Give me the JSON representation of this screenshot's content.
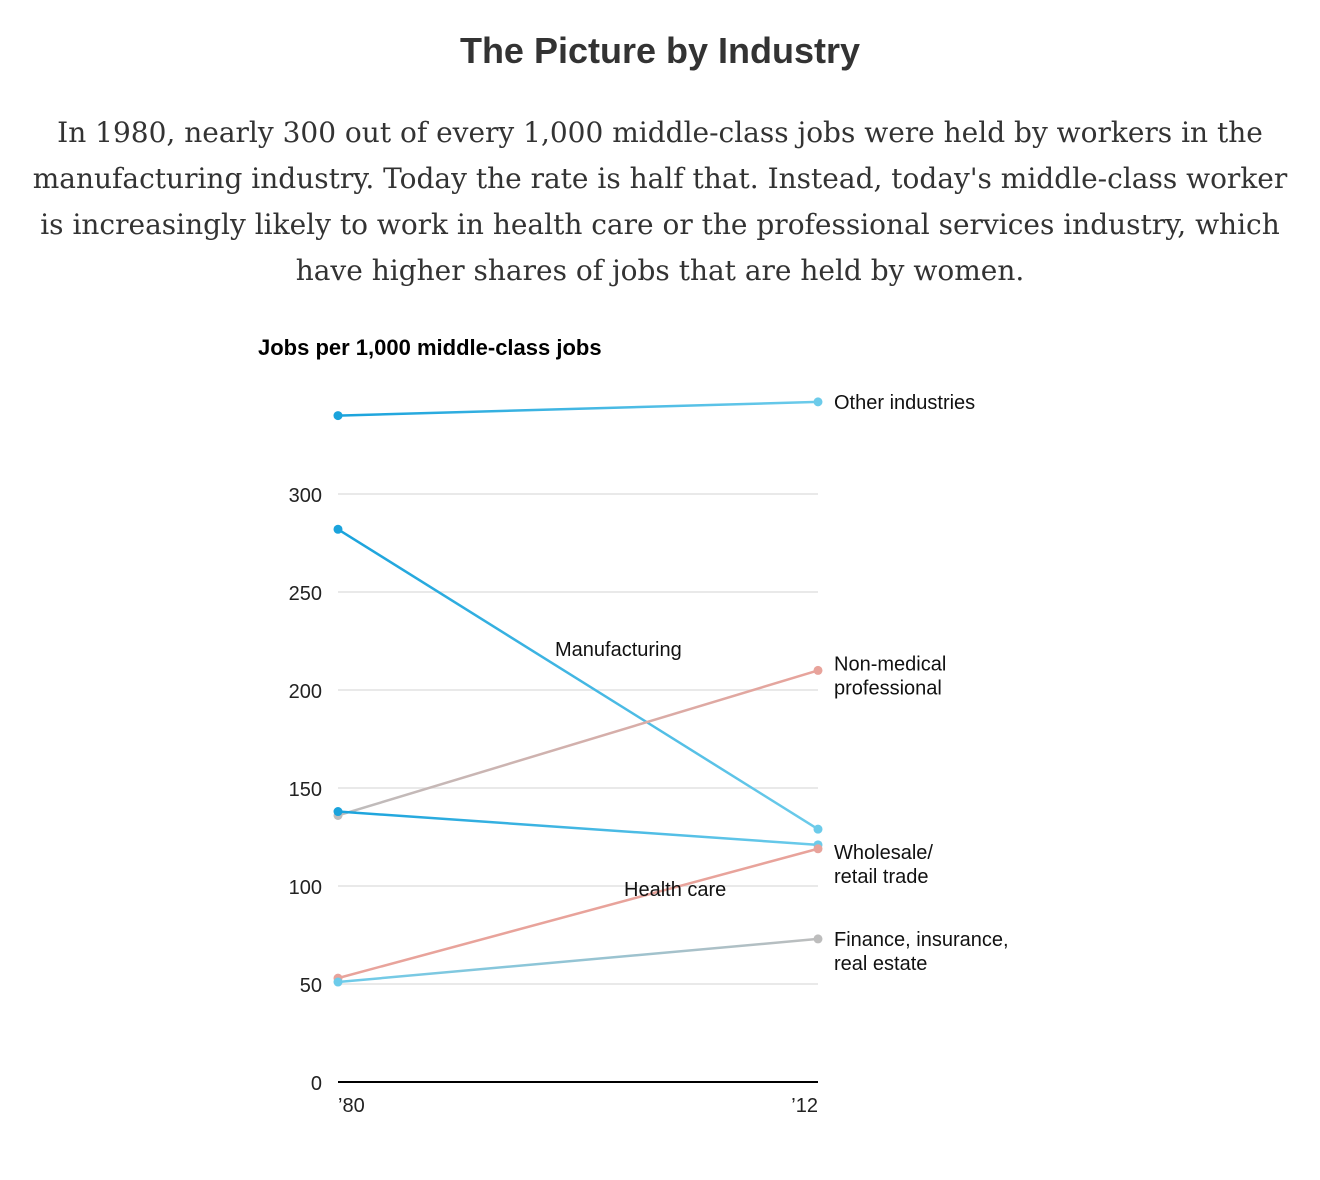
{
  "header": {
    "title": "The Picture by Industry",
    "intro": "In 1980, nearly 300 out of every 1,000 middle-class jobs were held by workers in the manufacturing industry. Today the rate is half that. Instead, today's middle-class worker is increasingly likely to work in health care or the professional services industry, which have higher shares of jobs that are held by women."
  },
  "chart_data": {
    "type": "line",
    "title": "",
    "ylabel": "Jobs per 1,000 middle-class jobs",
    "xlabel": "",
    "categories": [
      "’80",
      "’12"
    ],
    "ylim": [
      0,
      350
    ],
    "yticks": [
      0,
      50,
      100,
      150,
      200,
      250,
      300
    ],
    "grid": true,
    "series": [
      {
        "name": "Other industries",
        "label_lines": [
          "Other industries"
        ],
        "label_position": "end",
        "values": [
          340,
          347
        ],
        "color_start": "#1aa3dc",
        "color_end": "#6ccbea"
      },
      {
        "name": "Manufacturing",
        "label_lines": [
          "Manufacturing"
        ],
        "label_position": "middle",
        "values": [
          282,
          129
        ],
        "color_start": "#1aa3dc",
        "color_end": "#6ccbea"
      },
      {
        "name": "Non-medical professional",
        "label_lines": [
          "Non-medical",
          "professional"
        ],
        "label_position": "end",
        "values": [
          136,
          210
        ],
        "color_start": "#bdbdbd",
        "color_end": "#e8a39b"
      },
      {
        "name": "Wholesale/ retail trade",
        "label_lines": [
          "Wholesale/",
          "retail trade"
        ],
        "label_position": "end",
        "values": [
          138,
          121
        ],
        "color_start": "#1aa3dc",
        "color_end": "#6ccbea"
      },
      {
        "name": "Health care",
        "label_lines": [
          "Health care"
        ],
        "label_position": "middle",
        "values": [
          53,
          119
        ],
        "color_start": "#e8a39b",
        "color_end": "#e8a39b"
      },
      {
        "name": "Finance, insurance, real estate",
        "label_lines": [
          "Finance, insurance,",
          "real estate"
        ],
        "label_position": "end",
        "values": [
          51,
          73
        ],
        "color_start": "#6ccbea",
        "color_end": "#bdbdbd"
      }
    ]
  }
}
